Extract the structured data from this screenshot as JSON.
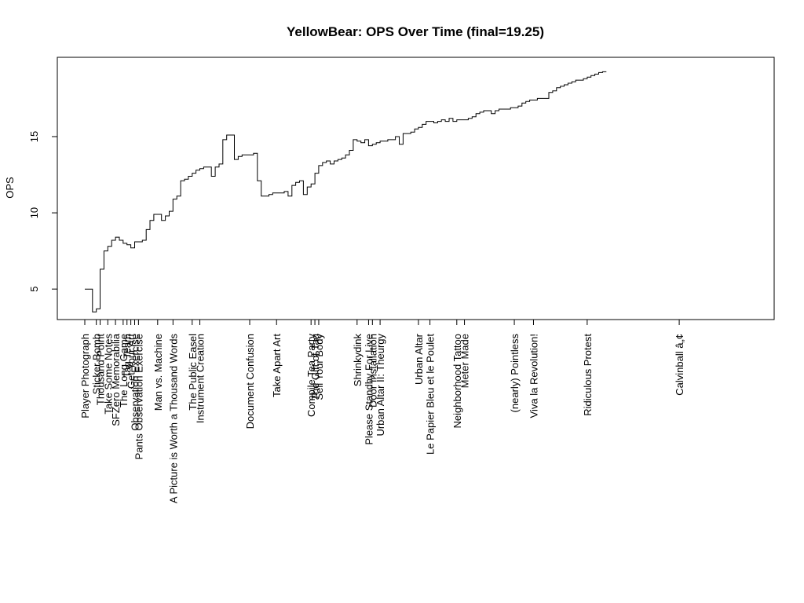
{
  "chart_data": {
    "type": "line",
    "title": "YellowBear: OPS Over Time (final=19.25)",
    "xlabel": "",
    "ylabel": "OPS",
    "ylim": [
      3.0,
      20.2
    ],
    "yticks": [
      5,
      10,
      15
    ],
    "grid": false,
    "legend": "none",
    "step": true,
    "line_color": "#000000",
    "series": [
      {
        "values": [
          5.0,
          5.0,
          3.5,
          3.7,
          6.3,
          7.5,
          7.8,
          8.2,
          8.4,
          8.2,
          8.0,
          7.9,
          7.7,
          8.1,
          8.1,
          8.2,
          8.9,
          9.5,
          9.9,
          9.9,
          9.5,
          9.8,
          10.1,
          10.9,
          11.1,
          12.1,
          12.2,
          12.4,
          12.6,
          12.8,
          12.9,
          13.0,
          13.0,
          12.4,
          13.0,
          13.2,
          14.8,
          15.1,
          15.1,
          13.5,
          13.7,
          13.8,
          13.8,
          13.8,
          13.9,
          12.1,
          11.1,
          11.1,
          11.2,
          11.3,
          11.3,
          11.3,
          11.4,
          11.1,
          11.8,
          12.0,
          12.1,
          11.2,
          11.7,
          11.9,
          12.6,
          13.1,
          13.3,
          13.4,
          13.2,
          13.4,
          13.5,
          13.6,
          13.8,
          14.1,
          14.8,
          14.7,
          14.6,
          14.8,
          14.4,
          14.5,
          14.6,
          14.7,
          14.7,
          14.8,
          14.8,
          15.0,
          14.5,
          15.2,
          15.2,
          15.3,
          15.5,
          15.6,
          15.8,
          16.0,
          16.0,
          15.9,
          16.0,
          16.1,
          16.0,
          16.2,
          16.0,
          16.1,
          16.1,
          16.1,
          16.2,
          16.3,
          16.5,
          16.6,
          16.7,
          16.7,
          16.5,
          16.7,
          16.8,
          16.8,
          16.8,
          16.9,
          16.9,
          17.0,
          17.2,
          17.3,
          17.4,
          17.4,
          17.5,
          17.5,
          17.5,
          17.9,
          18.0,
          18.2,
          18.3,
          18.4,
          18.5,
          18.6,
          18.7,
          18.7,
          18.8,
          18.9,
          19.0,
          19.1,
          19.2,
          19.25
        ]
      }
    ],
    "events": [
      {
        "index": 0,
        "label": "Player Photograph"
      },
      {
        "index": 3,
        "label": "Sticker Bomb"
      },
      {
        "index": 4,
        "label": "Thousand Point"
      },
      {
        "index": 6,
        "label": "Take Some Notes"
      },
      {
        "index": 8,
        "label": "SFZero Memorabilia"
      },
      {
        "index": 10,
        "label": "The Long Game"
      },
      {
        "index": 11,
        "label": "Tag Team"
      },
      {
        "index": 12,
        "label": "Get Your Art"
      },
      {
        "index": 13,
        "label": "Observation Exercise"
      },
      {
        "index": 14,
        "label": "Pants Observation Exercise"
      },
      {
        "index": 19,
        "label": "Man vs. Machine"
      },
      {
        "index": 23,
        "label": "A Picture is Worth a Thousand Words"
      },
      {
        "index": 28,
        "label": "The Public Easel"
      },
      {
        "index": 30,
        "label": "Instrument Creation"
      },
      {
        "index": 43,
        "label": "Document Confusion"
      },
      {
        "index": 50,
        "label": "Take Apart Art"
      },
      {
        "index": 59,
        "label": "Compile Tea Party"
      },
      {
        "index": 60,
        "label": "The Gift of Tag"
      },
      {
        "index": 61,
        "label": "Sell Your Body"
      },
      {
        "index": 71,
        "label": "Shrinkydink"
      },
      {
        "index": 74,
        "label": "Please Standby For Live"
      },
      {
        "index": 75,
        "label": "Door Installation"
      },
      {
        "index": 77,
        "label": "Urban Altar II: Theurgy"
      },
      {
        "index": 87,
        "label": "Urban Altar"
      },
      {
        "index": 90,
        "label": "Le Papier Bleu et le Poulet"
      },
      {
        "index": 97,
        "label": "Neighborhood Tattoo"
      },
      {
        "index": 99,
        "label": "Meter Made"
      },
      {
        "index": 112,
        "label": "(nearly) Pointless"
      },
      {
        "index": 117,
        "label": "Viva la Revolution!"
      },
      {
        "index": 131,
        "label": "Ridiculous Protest"
      },
      {
        "index": 155,
        "label": "Calvinball â„¢"
      }
    ],
    "x_count": 174
  }
}
